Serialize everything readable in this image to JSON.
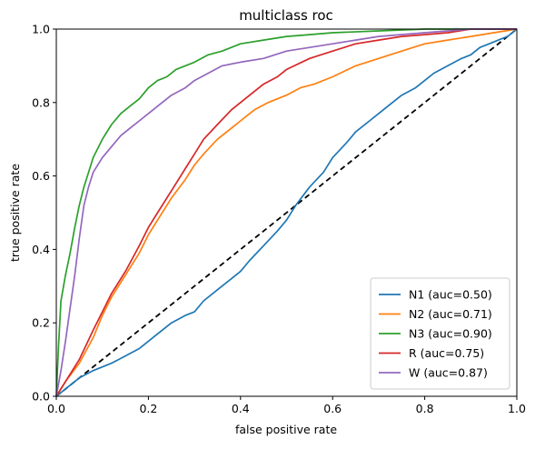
{
  "chart_data": {
    "type": "line",
    "title": "multiclass roc",
    "xlabel": "false positive rate",
    "ylabel": "true positive rate",
    "xlim": [
      0,
      1
    ],
    "ylim": [
      0,
      1
    ],
    "xticks": [
      "0.0",
      "0.2",
      "0.4",
      "0.6",
      "0.8",
      "1.0"
    ],
    "yticks": [
      "0.0",
      "0.2",
      "0.4",
      "0.6",
      "0.8",
      "1.0"
    ],
    "grid": false,
    "legend_position": "lower-right",
    "chance_line": {
      "x": [
        0,
        1
      ],
      "y": [
        0,
        1
      ],
      "color": "#000000",
      "style": "dashed"
    },
    "series": [
      {
        "name": "N1 (auc=0.50)",
        "color": "#1f77b4",
        "x": [
          0,
          0.02,
          0.05,
          0.08,
          0.1,
          0.12,
          0.15,
          0.18,
          0.2,
          0.22,
          0.25,
          0.28,
          0.3,
          0.32,
          0.35,
          0.38,
          0.4,
          0.42,
          0.45,
          0.48,
          0.5,
          0.52,
          0.55,
          0.58,
          0.6,
          0.63,
          0.65,
          0.68,
          0.7,
          0.72,
          0.75,
          0.78,
          0.8,
          0.82,
          0.85,
          0.88,
          0.9,
          0.92,
          0.94,
          0.96,
          0.98,
          1.0
        ],
        "y": [
          0,
          0.02,
          0.05,
          0.07,
          0.08,
          0.09,
          0.11,
          0.13,
          0.15,
          0.17,
          0.2,
          0.22,
          0.23,
          0.26,
          0.29,
          0.32,
          0.34,
          0.37,
          0.41,
          0.45,
          0.48,
          0.52,
          0.57,
          0.61,
          0.65,
          0.69,
          0.72,
          0.75,
          0.77,
          0.79,
          0.82,
          0.84,
          0.86,
          0.88,
          0.9,
          0.92,
          0.93,
          0.95,
          0.96,
          0.97,
          0.98,
          1.0
        ]
      },
      {
        "name": "N2 (auc=0.71)",
        "color": "#ff7f0e",
        "x": [
          0,
          0.02,
          0.05,
          0.08,
          0.1,
          0.12,
          0.15,
          0.18,
          0.2,
          0.22,
          0.25,
          0.28,
          0.3,
          0.32,
          0.35,
          0.38,
          0.4,
          0.43,
          0.46,
          0.5,
          0.53,
          0.56,
          0.6,
          0.65,
          0.7,
          0.75,
          0.8,
          0.85,
          0.9,
          0.95,
          1.0
        ],
        "y": [
          0,
          0.04,
          0.09,
          0.16,
          0.22,
          0.27,
          0.33,
          0.39,
          0.44,
          0.48,
          0.54,
          0.59,
          0.63,
          0.66,
          0.7,
          0.73,
          0.75,
          0.78,
          0.8,
          0.82,
          0.84,
          0.85,
          0.87,
          0.9,
          0.92,
          0.94,
          0.96,
          0.97,
          0.98,
          0.99,
          1.0
        ]
      },
      {
        "name": "N3 (auc=0.90)",
        "color": "#2ca02c",
        "x": [
          0,
          0.005,
          0.01,
          0.02,
          0.03,
          0.04,
          0.05,
          0.06,
          0.07,
          0.08,
          0.1,
          0.12,
          0.14,
          0.16,
          0.18,
          0.2,
          0.22,
          0.24,
          0.26,
          0.28,
          0.3,
          0.33,
          0.36,
          0.4,
          0.45,
          0.5,
          0.55,
          0.6,
          0.7,
          0.8,
          0.9,
          1.0
        ],
        "y": [
          0,
          0.14,
          0.26,
          0.33,
          0.39,
          0.46,
          0.52,
          0.57,
          0.61,
          0.65,
          0.7,
          0.74,
          0.77,
          0.79,
          0.81,
          0.84,
          0.86,
          0.87,
          0.89,
          0.9,
          0.91,
          0.93,
          0.94,
          0.96,
          0.97,
          0.98,
          0.985,
          0.99,
          0.995,
          1.0,
          1.0,
          1.0
        ]
      },
      {
        "name": "R (auc=0.75)",
        "color": "#d62728",
        "x": [
          0,
          0.02,
          0.05,
          0.08,
          0.1,
          0.12,
          0.15,
          0.18,
          0.2,
          0.22,
          0.25,
          0.28,
          0.3,
          0.32,
          0.35,
          0.38,
          0.4,
          0.42,
          0.45,
          0.48,
          0.5,
          0.55,
          0.6,
          0.65,
          0.7,
          0.75,
          0.8,
          0.85,
          0.9,
          0.95,
          1.0
        ],
        "y": [
          0,
          0.04,
          0.1,
          0.18,
          0.23,
          0.28,
          0.34,
          0.41,
          0.46,
          0.5,
          0.56,
          0.62,
          0.66,
          0.7,
          0.74,
          0.78,
          0.8,
          0.82,
          0.85,
          0.87,
          0.89,
          0.92,
          0.94,
          0.96,
          0.97,
          0.98,
          0.985,
          0.99,
          1.0,
          1.0,
          1.0
        ]
      },
      {
        "name": "W (auc=0.87)",
        "color": "#9467bd",
        "x": [
          0,
          0.01,
          0.02,
          0.03,
          0.04,
          0.05,
          0.06,
          0.07,
          0.08,
          0.1,
          0.12,
          0.14,
          0.16,
          0.18,
          0.2,
          0.22,
          0.25,
          0.28,
          0.3,
          0.33,
          0.36,
          0.4,
          0.45,
          0.5,
          0.55,
          0.6,
          0.65,
          0.7,
          0.8,
          0.9,
          1.0
        ],
        "y": [
          0,
          0.07,
          0.15,
          0.24,
          0.33,
          0.43,
          0.52,
          0.57,
          0.61,
          0.65,
          0.68,
          0.71,
          0.73,
          0.75,
          0.77,
          0.79,
          0.82,
          0.84,
          0.86,
          0.88,
          0.9,
          0.91,
          0.92,
          0.94,
          0.95,
          0.96,
          0.97,
          0.98,
          0.99,
          1.0,
          1.0
        ]
      }
    ]
  }
}
